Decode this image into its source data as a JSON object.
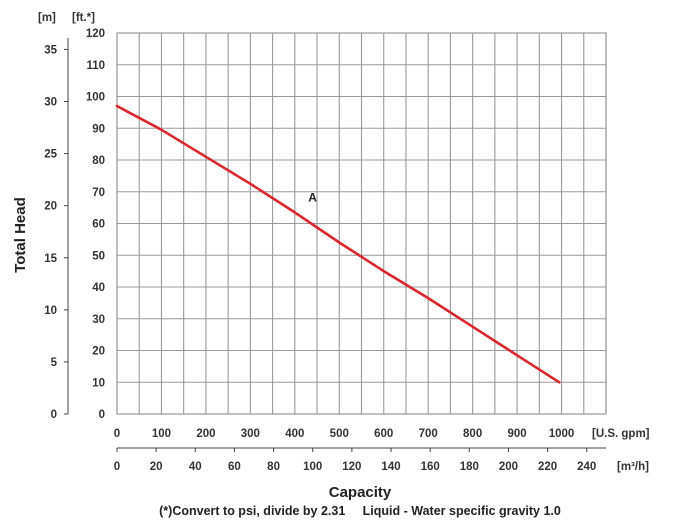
{
  "chart_data": {
    "type": "line",
    "series": [
      {
        "color": "#d9262b",
        "x": [
          0,
          100,
          200,
          300,
          400,
          500,
          600,
          700,
          800,
          900,
          995
        ],
        "y": [
          97,
          89.5,
          81,
          72.5,
          63.5,
          54,
          45,
          36.5,
          27.5,
          18.5,
          10
        ]
      }
    ],
    "annotations": [
      {
        "text": "A",
        "x": 440,
        "y": 67
      }
    ],
    "xlim": [
      0,
      1100
    ],
    "ylim": [
      0,
      120
    ],
    "x_ticks": [
      "0",
      "100",
      "200",
      "300",
      "400",
      "500",
      "600",
      "700",
      "800",
      "900",
      "1000"
    ],
    "x_unit": "[U.S. gpm]",
    "x2_ticks": [
      "0",
      "20",
      "40",
      "60",
      "80",
      "100",
      "120",
      "140",
      "160",
      "180",
      "200",
      "220",
      "240"
    ],
    "x2_unit": "[m³/h]",
    "y_ticks": [
      "0",
      "10",
      "20",
      "30",
      "40",
      "50",
      "60",
      "70",
      "80",
      "90",
      "100",
      "110",
      "120"
    ],
    "y_unit": "[ft.*]",
    "y2_ticks": [
      "0",
      "5",
      "10",
      "15",
      "20",
      "25",
      "30",
      "35"
    ],
    "y2_unit": "[m]",
    "xlabel": "Capacity",
    "ylabel": "Total Head",
    "note": "(*)Convert to psi, divide by 2.31     Liquid - Water specific gravity 1.0",
    "grid": true,
    "line_color": "#d9262b",
    "grid_color": "#9a9a9a"
  }
}
